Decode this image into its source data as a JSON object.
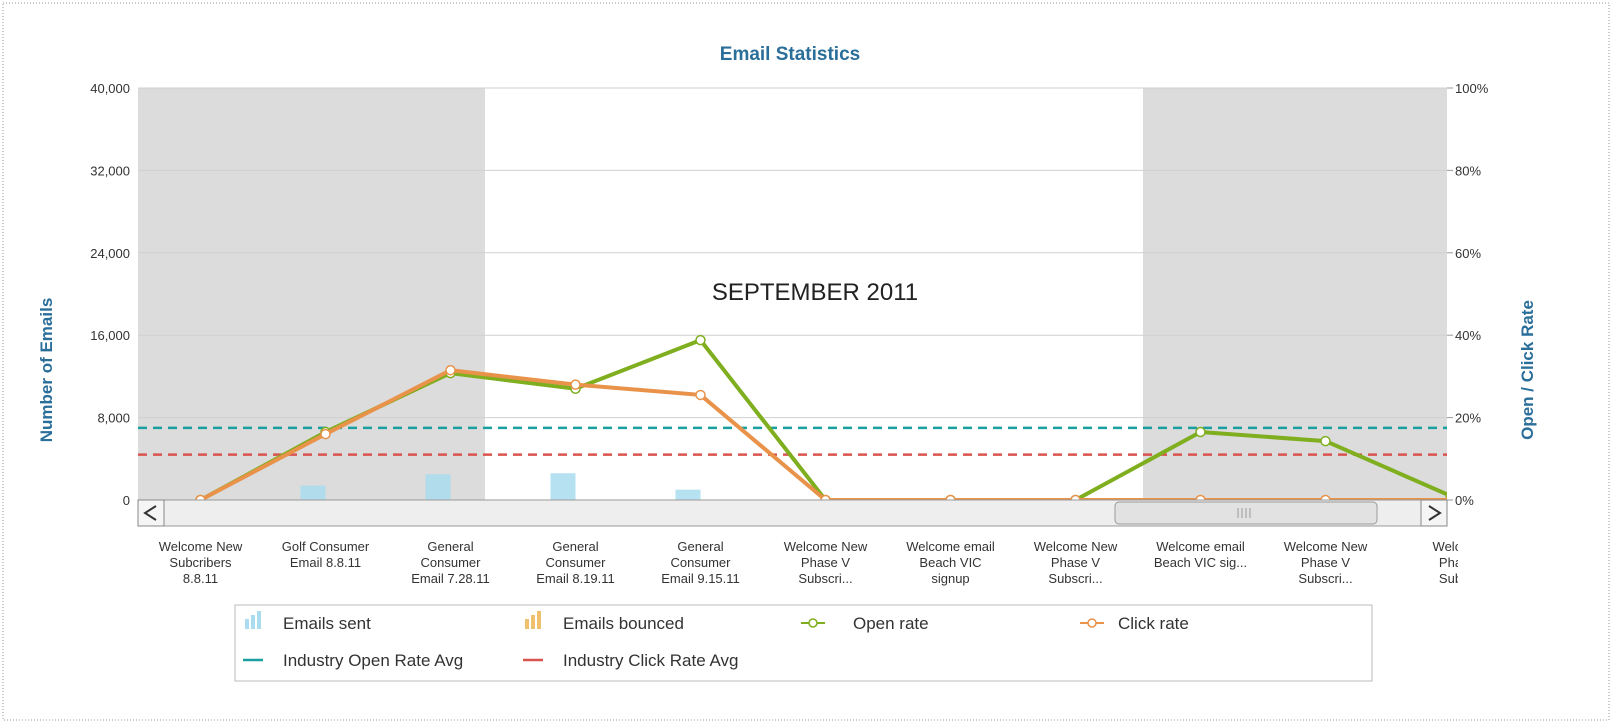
{
  "chart_data": {
    "type": "combo",
    "title": "Email Statistics",
    "annotation": "SEPTEMBER 2011",
    "y_label": "Number of Emails",
    "y2_label": "Open / Click Rate",
    "categories": [
      "Welcome New\nSubcribers\n8.8.11",
      "Golf Consumer\nEmail 8.8.11",
      "General\nConsumer\nEmail 7.28.11",
      "General\nConsumer\nEmail 8.19.11",
      "General\nConsumer\nEmail 9.15.11",
      "Welcome New\nPhase V\nSubscri...",
      "Welcome email\nBeach VIC\nsignup",
      "Welcome New\nPhase V\nSubscri...",
      "Welcome email\nBeach VIC sig...",
      "Welcome New\nPhase V\nSubscri...",
      "Welco\nPha\nSub"
    ],
    "ylim": [
      0,
      40000
    ],
    "yticks": [
      0,
      {
        "value": 8000,
        "label": "8,000"
      },
      {
        "value": 16000,
        "label": "16,000"
      },
      {
        "value": 24000,
        "label": "24,000"
      },
      {
        "value": 32000,
        "label": "32,000"
      },
      {
        "value": 40000,
        "label": "40,000"
      }
    ],
    "y2lim": [
      0,
      100
    ],
    "y2ticks": [
      {
        "value": 0,
        "label": "0%"
      },
      {
        "value": 20,
        "label": "20%"
      },
      {
        "value": 40,
        "label": "40%"
      },
      {
        "value": 60,
        "label": "60%"
      },
      {
        "value": 80,
        "label": "80%"
      },
      {
        "value": 100,
        "label": "100%"
      }
    ],
    "grid": true,
    "series": [
      {
        "name": "Emails sent",
        "type": "bar",
        "color": "#a9dcee",
        "values": [
          0,
          1400,
          2500,
          2600,
          1000,
          0,
          0,
          0,
          0,
          0,
          0
        ]
      },
      {
        "name": "Emails bounced",
        "type": "bar",
        "color": "#efc06e",
        "values": [
          0,
          0,
          0,
          0,
          0,
          0,
          0,
          0,
          0,
          0,
          0
        ]
      },
      {
        "name": "Open rate",
        "type": "line",
        "axis": "y2",
        "color": "#7fae1f",
        "values": [
          0,
          16.5,
          30.8,
          27,
          38.8,
          0,
          0,
          0,
          16.5,
          14.3,
          1
        ]
      },
      {
        "name": "Click rate",
        "type": "line",
        "axis": "y2",
        "color": "#e8924a",
        "values": [
          0,
          16,
          31.5,
          28,
          25.5,
          0,
          0,
          0,
          0,
          0,
          0
        ]
      }
    ],
    "reference_lines": [
      {
        "name": "Industry Open Rate Avg",
        "axis": "y2",
        "color": "#1a9fa0",
        "value": 17.5
      },
      {
        "name": "Industry Click Rate Avg",
        "axis": "y2",
        "color": "#d9534f",
        "value": 11
      }
    ]
  }
}
